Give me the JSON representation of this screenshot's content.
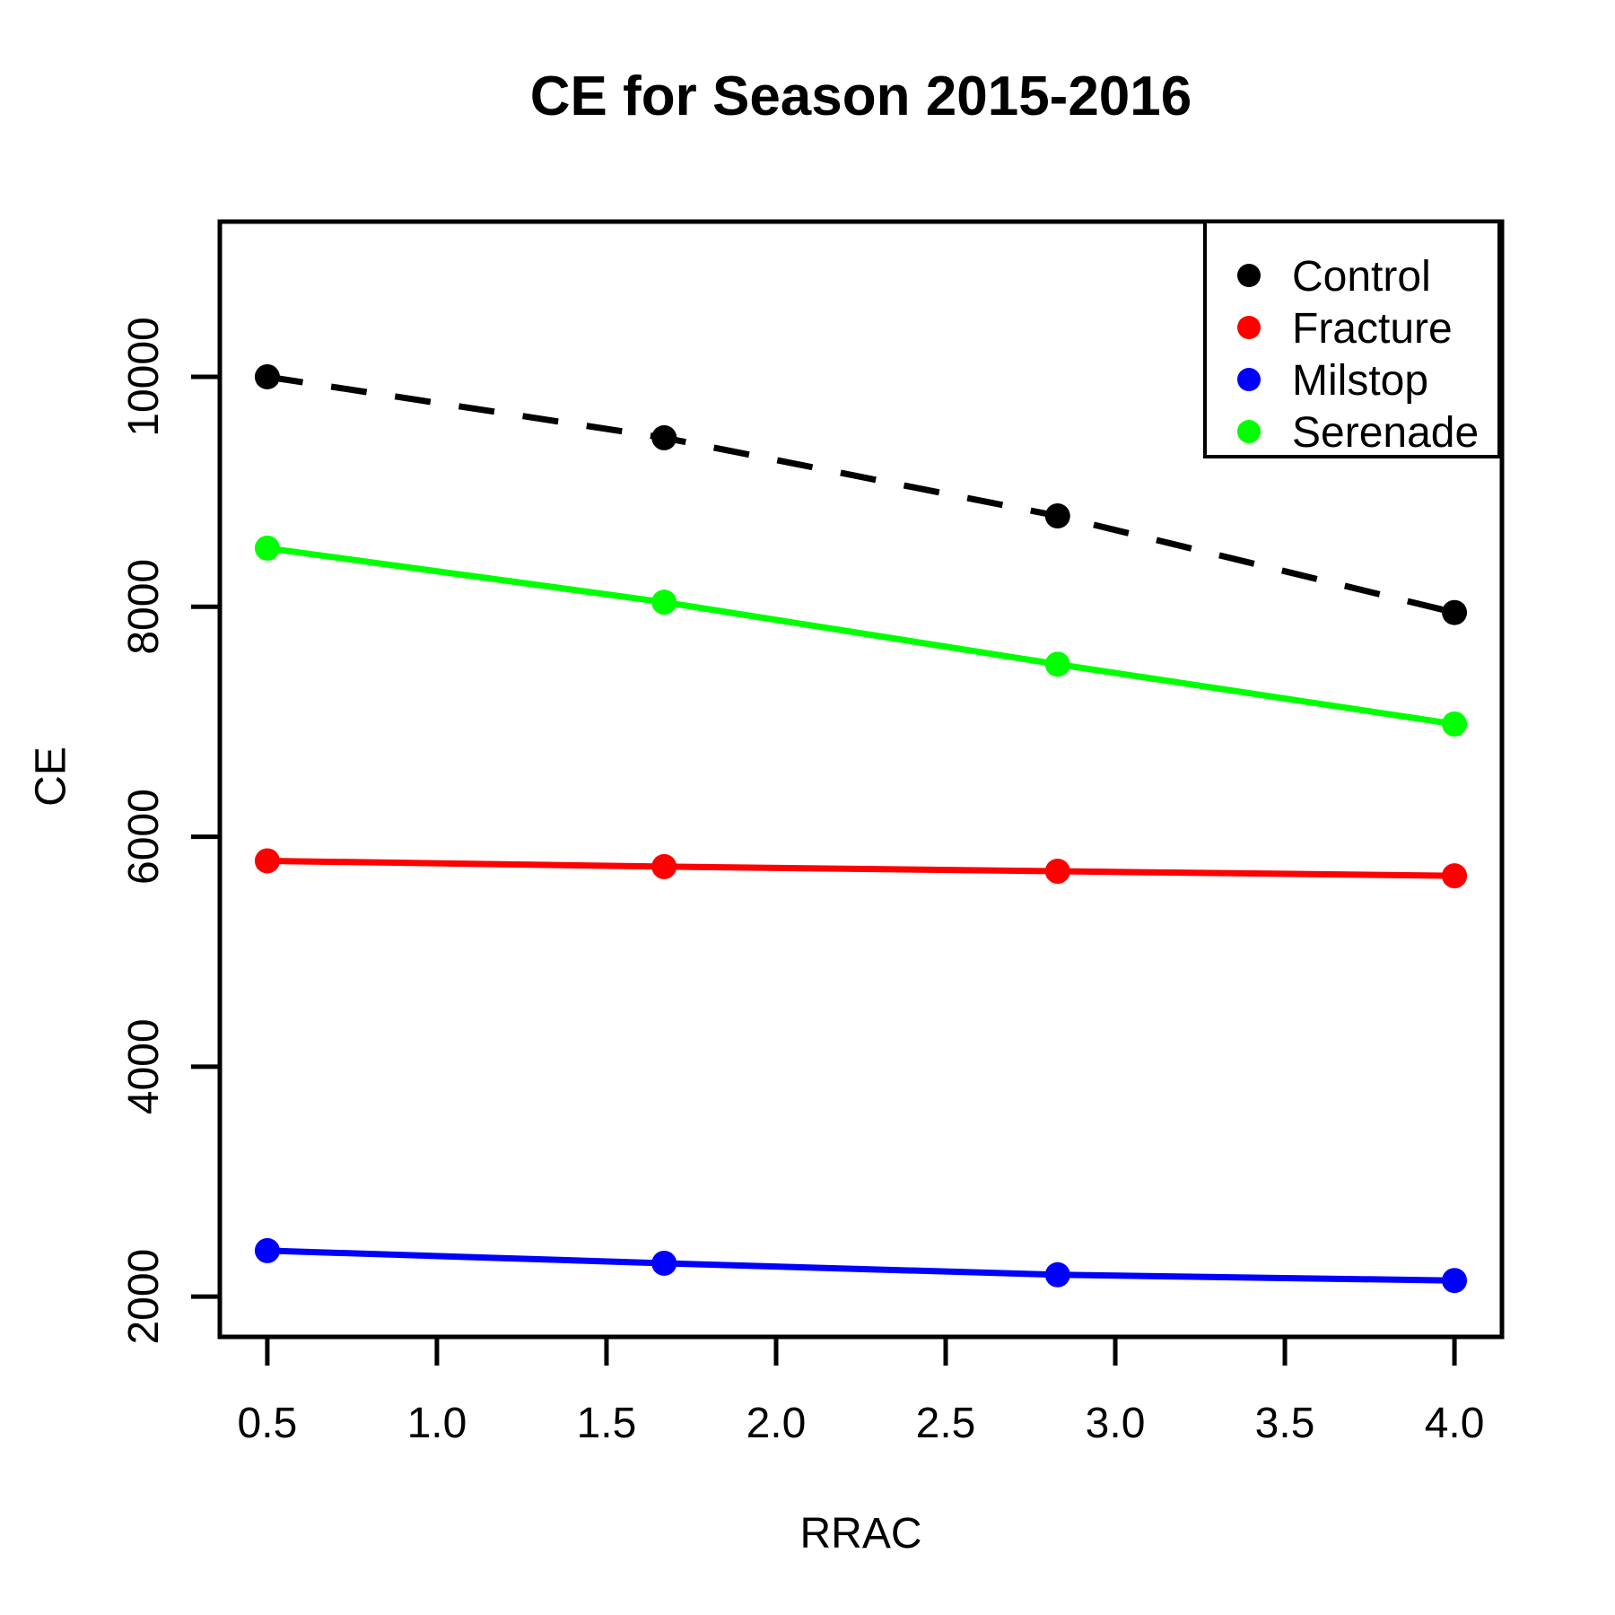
{
  "chart_data": {
    "type": "line",
    "title": "CE for Season 2015-2016",
    "xlabel": "RRAC",
    "ylabel": "CE",
    "x": [
      0.5,
      1.67,
      2.83,
      4.0
    ],
    "series": [
      {
        "name": "Control",
        "color": "#000000",
        "linestyle": "dashed",
        "values": [
          10000,
          9470,
          8790,
          7950
        ]
      },
      {
        "name": "Fracture",
        "color": "#FF0000",
        "linestyle": "solid",
        "values": [
          5790,
          5740,
          5700,
          5660
        ]
      },
      {
        "name": "Milstop",
        "color": "#0000FF",
        "linestyle": "solid",
        "values": [
          2400,
          2290,
          2190,
          2140
        ]
      },
      {
        "name": "Serenade",
        "color": "#00FF00",
        "linestyle": "solid",
        "values": [
          8510,
          8040,
          7500,
          6980
        ]
      }
    ],
    "x_ticks": [
      0.5,
      1.0,
      1.5,
      2.0,
      2.5,
      3.0,
      3.5,
      4.0
    ],
    "x_tick_labels": [
      "0.5",
      "1.0",
      "1.5",
      "2.0",
      "2.5",
      "3.0",
      "3.5",
      "4.0"
    ],
    "y_ticks": [
      2000,
      4000,
      6000,
      8000,
      10000
    ],
    "y_tick_labels": [
      "2000",
      "4000",
      "6000",
      "8000",
      "10000"
    ],
    "xlim": [
      0.36,
      4.14
    ],
    "ylim": [
      1650,
      11350
    ],
    "grid": false,
    "legend_position": "top-right",
    "marker": "filled-circle",
    "axis_color": "#000000",
    "background_color": "#FFFFFF"
  }
}
